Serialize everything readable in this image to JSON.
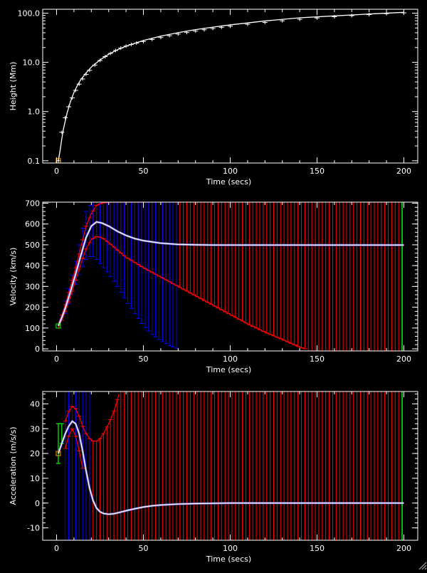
{
  "chart_data": [
    {
      "type": "scatter",
      "panel": "height",
      "xlabel": "Time (secs)",
      "ylabel": "Height (Mm)",
      "xlim": [
        -8,
        208
      ],
      "ylim": [
        0.09,
        120
      ],
      "yscale": "log",
      "xticks": [
        0,
        50,
        100,
        150,
        200
      ],
      "yticks": [
        0.1,
        1.0,
        10.0,
        100.0
      ],
      "ytick_labels": [
        "0.1",
        "1.0",
        "10.0",
        "100.0"
      ],
      "grid": false,
      "model_curve": {
        "color": "#ffffff",
        "x": [
          1,
          2,
          3,
          4,
          6,
          8,
          10,
          12,
          14,
          17,
          20,
          25,
          30,
          35,
          40,
          50,
          60,
          70,
          80,
          90,
          100,
          120,
          140,
          160,
          180,
          200
        ],
        "y": [
          0.1,
          0.16,
          0.28,
          0.45,
          0.92,
          1.6,
          2.45,
          3.4,
          4.5,
          6.1,
          8.0,
          11.2,
          14.6,
          18.0,
          21.3,
          27.8,
          34.1,
          40.2,
          46.2,
          52.0,
          57.8,
          69.4,
          80.5,
          88.0,
          96.0,
          104.0
        ]
      },
      "measurements": {
        "color": "#ffffff",
        "marker": "plus",
        "x": [
          1,
          3,
          5,
          7,
          9,
          11,
          13,
          15,
          17,
          19,
          22,
          25,
          28,
          31,
          34,
          37,
          40,
          43,
          46,
          50,
          55,
          60,
          65,
          70,
          75,
          80,
          85,
          90,
          95,
          100,
          110,
          120,
          130,
          140,
          150,
          160,
          170,
          180,
          190,
          200
        ],
        "y": [
          0.1,
          0.38,
          0.75,
          1.25,
          1.9,
          2.7,
          3.6,
          4.6,
          5.7,
          6.9,
          8.8,
          10.9,
          13.1,
          15.2,
          17.4,
          19.5,
          21.4,
          23.1,
          24.6,
          26.5,
          29.2,
          32.0,
          34.8,
          37.6,
          40.4,
          43.2,
          46.0,
          48.8,
          51.5,
          54.2,
          59.5,
          64.8,
          70.0,
          75.0,
          79.8,
          84.5,
          89.0,
          93.4,
          97.6,
          101.5
        ]
      },
      "initial_point": {
        "x": 1,
        "y": 0.1,
        "color": "#ffa500",
        "marker": "square"
      }
    },
    {
      "type": "line",
      "panel": "velocity",
      "xlabel": "Time (secs)",
      "ylabel": "Velocity (km/s)",
      "xlim": [
        -8,
        208
      ],
      "ylim": [
        -10,
        705
      ],
      "yscale": "linear",
      "xticks": [
        0,
        50,
        100,
        150,
        200
      ],
      "yticks": [
        0,
        100,
        200,
        300,
        400,
        500,
        600,
        700
      ],
      "grid": false,
      "model_curve": {
        "color": "#ffffff",
        "x": [
          1,
          3,
          5,
          8,
          11,
          14,
          17,
          20,
          23,
          26,
          30,
          35,
          40,
          45,
          50,
          60,
          70,
          80,
          90,
          100,
          120,
          140,
          160,
          180,
          200
        ],
        "y": [
          110,
          150,
          195,
          275,
          360,
          450,
          535,
          590,
          610,
          605,
          590,
          565,
          545,
          530,
          520,
          508,
          502,
          500,
          499,
          499,
          499,
          499,
          499,
          499,
          499
        ]
      },
      "error_lower_envelope": {
        "color": "#ff0000",
        "x": [
          1,
          3,
          5,
          8,
          11,
          14,
          17,
          20,
          23,
          26,
          30,
          35,
          40,
          50,
          60,
          70,
          80,
          90,
          100,
          110,
          120,
          130,
          140,
          143
        ],
        "y": [
          100,
          138,
          178,
          250,
          330,
          410,
          480,
          525,
          540,
          535,
          510,
          475,
          440,
          390,
          345,
          300,
          255,
          210,
          165,
          120,
          80,
          45,
          8,
          0
        ]
      },
      "error_upper_envelope": {
        "color": "#ff0000",
        "x": [
          1,
          3,
          5,
          8,
          11,
          14,
          17,
          20,
          23,
          26,
          30,
          35,
          40,
          50
        ],
        "y": [
          120,
          162,
          212,
          300,
          390,
          490,
          590,
          650,
          690,
          700,
          705,
          705,
          705,
          705
        ]
      },
      "blue_lower_envelope": {
        "color": "#0000ff",
        "x": [
          5,
          8,
          11,
          14,
          17,
          20,
          23,
          26,
          30,
          35,
          40,
          45,
          50,
          55,
          60,
          65,
          70
        ],
        "y": [
          170,
          240,
          310,
          380,
          430,
          450,
          430,
          400,
          360,
          300,
          230,
          170,
          110,
          70,
          40,
          15,
          0
        ]
      },
      "blue_upper_envelope": {
        "color": "#0000ff",
        "x": [
          5,
          8,
          11,
          14,
          17,
          20
        ],
        "y": [
          230,
          320,
          420,
          540,
          660,
          705
        ]
      },
      "initial_point": {
        "x": 1,
        "y": 110,
        "color": "#00ff00",
        "marker": "square"
      },
      "end_marker": {
        "x": 199,
        "color": "#00ff00"
      }
    },
    {
      "type": "line",
      "panel": "acceleration",
      "xlabel": "Time (secs)",
      "ylabel": "Acceleration (m/s/s)",
      "xlim": [
        -8,
        208
      ],
      "ylim": [
        -15,
        45
      ],
      "yscale": "linear",
      "xticks": [
        0,
        50,
        100,
        150,
        200
      ],
      "yticks": [
        -10,
        0,
        10,
        20,
        30,
        40
      ],
      "grid": false,
      "model_curve": {
        "color": "#ffffff",
        "x": [
          1,
          3,
          5,
          7,
          9,
          11,
          13,
          15,
          17,
          19,
          21,
          23,
          25,
          27,
          30,
          33,
          36,
          40,
          45,
          50,
          55,
          60,
          70,
          80,
          90,
          100,
          120,
          140,
          160,
          180,
          200
        ],
        "y": [
          20,
          24,
          28,
          31,
          33,
          32,
          28,
          21,
          13,
          6,
          1,
          -2,
          -3.5,
          -4.2,
          -4.5,
          -4.3,
          -3.8,
          -3.1,
          -2.3,
          -1.6,
          -1.1,
          -0.8,
          -0.4,
          -0.2,
          -0.1,
          0,
          0,
          0,
          0,
          0,
          0
        ]
      },
      "error_lower_envelope": {
        "color": "#ff0000",
        "x": [
          5,
          7,
          9,
          11,
          13,
          15
        ],
        "y": [
          22,
          27,
          30,
          27,
          21,
          14
        ]
      },
      "error_upper_envelope": {
        "color": "#ff0000",
        "x": [
          5,
          7,
          9,
          11,
          13,
          15,
          17,
          19,
          21,
          23,
          25,
          27,
          30,
          33,
          36
        ],
        "y": [
          33,
          37,
          39,
          38,
          35,
          31,
          28,
          26,
          25,
          25,
          26,
          28,
          32,
          37,
          44
        ]
      },
      "green_points": {
        "color": "#00ff00",
        "x": [
          1,
          3
        ],
        "y": [
          24,
          28
        ],
        "err": [
          8,
          4
        ]
      },
      "initial_point": {
        "x": 1,
        "y": 20,
        "color": "#ffa500",
        "marker": "square"
      },
      "end_marker": {
        "x": 199,
        "color": "#00ff00"
      }
    }
  ]
}
